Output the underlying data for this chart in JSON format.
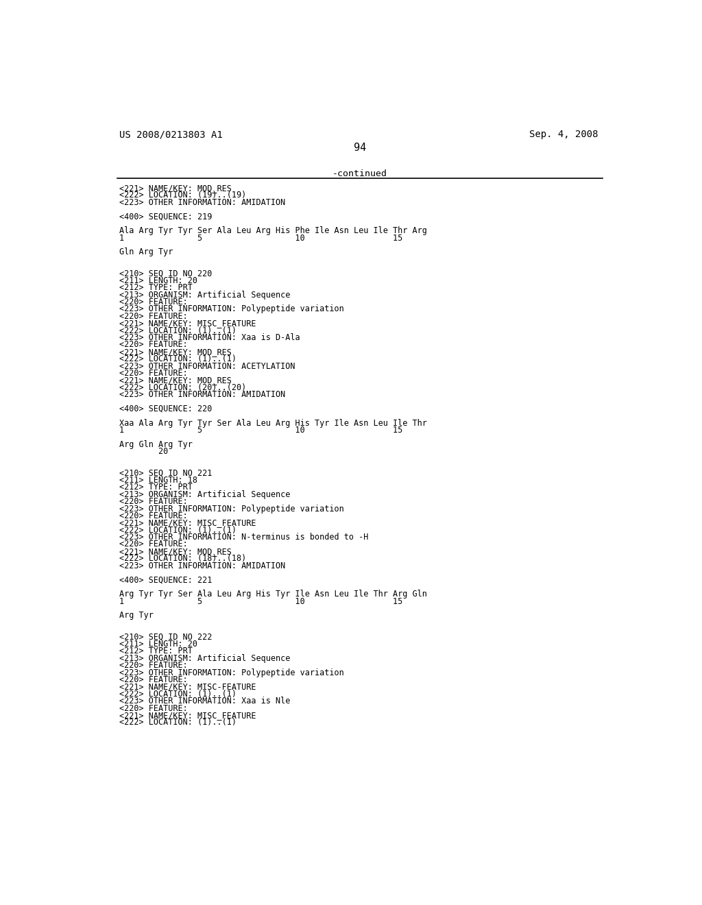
{
  "header_left": "US 2008/0213803 A1",
  "header_right": "Sep. 4, 2008",
  "page_number": "94",
  "continued_label": "-continued",
  "background_color": "#ffffff",
  "text_color": "#000000",
  "content_lines": [
    "<221> NAME/KEY: MOD_RES",
    "<222> LOCATION: (19)..(19)",
    "<223> OTHER INFORMATION: AMIDATION",
    "",
    "<400> SEQUENCE: 219",
    "",
    "Ala Arg Tyr Tyr Ser Ala Leu Arg His Phe Ile Asn Leu Ile Thr Arg",
    "1               5                   10                  15",
    "",
    "Gln Arg Tyr",
    "",
    "",
    "<210> SEQ ID NO 220",
    "<211> LENGTH: 20",
    "<212> TYPE: PRT",
    "<213> ORGANISM: Artificial Sequence",
    "<220> FEATURE:",
    "<223> OTHER INFORMATION: Polypeptide variation",
    "<220> FEATURE:",
    "<221> NAME/KEY: MISC_FEATURE",
    "<222> LOCATION: (1)..(1)",
    "<223> OTHER INFORMATION: Xaa is D-Ala",
    "<220> FEATURE:",
    "<221> NAME/KEY: MOD_RES",
    "<222> LOCATION: (1)..(1)",
    "<223> OTHER INFORMATION: ACETYLATION",
    "<220> FEATURE:",
    "<221> NAME/KEY: MOD_RES",
    "<222> LOCATION: (20)..(20)",
    "<223> OTHER INFORMATION: AMIDATION",
    "",
    "<400> SEQUENCE: 220",
    "",
    "Xaa Ala Arg Tyr Tyr Ser Ala Leu Arg His Tyr Ile Asn Leu Ile Thr",
    "1               5                   10                  15",
    "",
    "Arg Gln Arg Tyr",
    "        20",
    "",
    "",
    "<210> SEQ ID NO 221",
    "<211> LENGTH: 18",
    "<212> TYPE: PRT",
    "<213> ORGANISM: Artificial Sequence",
    "<220> FEATURE:",
    "<223> OTHER INFORMATION: Polypeptide variation",
    "<220> FEATURE:",
    "<221> NAME/KEY: MISC_FEATURE",
    "<222> LOCATION: (1)..(1)",
    "<223> OTHER INFORMATION: N-terminus is bonded to -H",
    "<220> FEATURE:",
    "<221> NAME/KEY: MOD_RES",
    "<222> LOCATION: (18)..(18)",
    "<223> OTHER INFORMATION: AMIDATION",
    "",
    "<400> SEQUENCE: 221",
    "",
    "Arg Tyr Tyr Ser Ala Leu Arg His Tyr Ile Asn Leu Ile Thr Arg Gln",
    "1               5                   10                  15",
    "",
    "Arg Tyr",
    "",
    "",
    "<210> SEQ ID NO 222",
    "<211> LENGTH: 20",
    "<212> TYPE: PRT",
    "<213> ORGANISM: Artificial Sequence",
    "<220> FEATURE:",
    "<223> OTHER INFORMATION: Polypeptide variation",
    "<220> FEATURE:",
    "<221> NAME/KEY: MISC-FEATURE",
    "<222> LOCATION: (1)..(1)",
    "<223> OTHER INFORMATION: Xaa is Nle",
    "<220> FEATURE:",
    "<221> NAME/KEY: MISC_FEATURE",
    "<222> LOCATION: (1)..(1)"
  ]
}
